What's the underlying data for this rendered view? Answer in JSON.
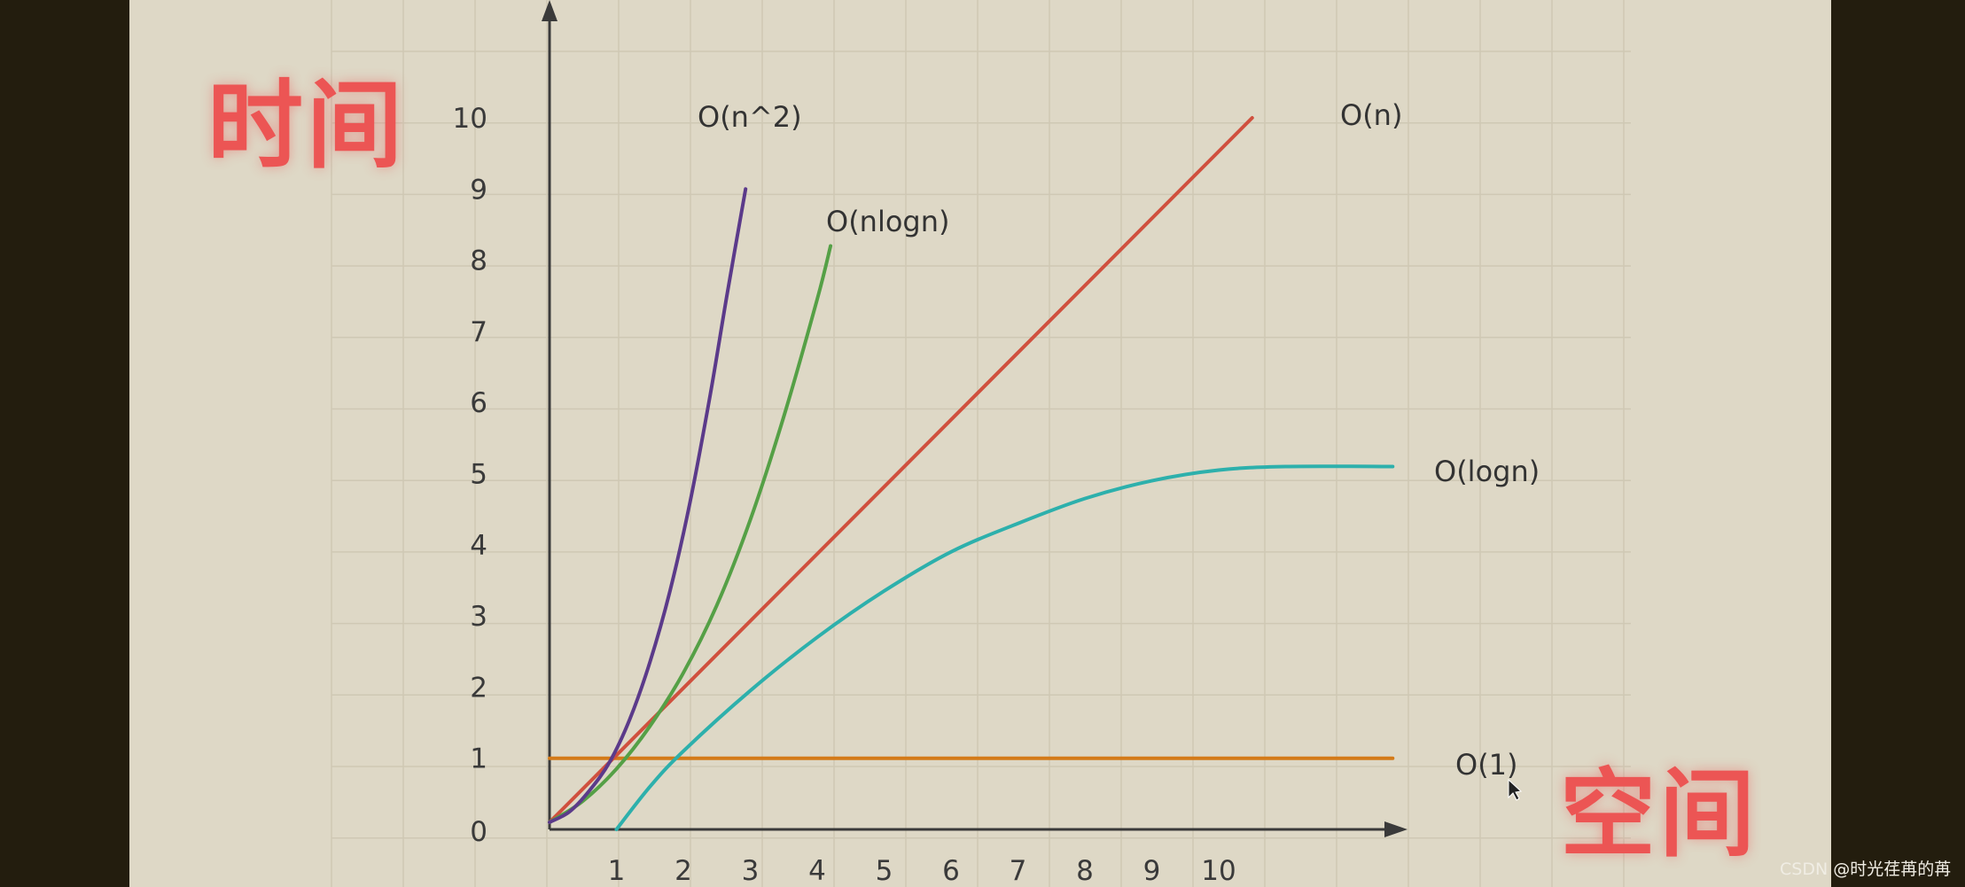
{
  "labels": {
    "time": "时间",
    "space": "空间"
  },
  "watermark": "CSDN @时光荏苒的苒",
  "colors": {
    "background": "#ded8c6",
    "frame": "#231d0e",
    "grid": "#cfc8b4",
    "axis": "#3a3a3a",
    "big_label": "#ec5554"
  },
  "chart_data": {
    "type": "line",
    "xlim": [
      0,
      12.6
    ],
    "ylim": [
      0,
      10.6
    ],
    "x_ticks": [
      1,
      2,
      3,
      4,
      5,
      6,
      7,
      8,
      9,
      10
    ],
    "y_ticks": [
      0,
      1,
      2,
      3,
      4,
      5,
      6,
      7,
      8,
      9,
      10
    ],
    "grid": true,
    "series": [
      {
        "name": "O(n^2)",
        "color": "#5b3a8a",
        "x": [
          0,
          0.3,
          0.6,
          0.9,
          1.2,
          1.5,
          1.8,
          2.1,
          2.4,
          2.65,
          2.93
        ],
        "y": [
          0.1,
          0.25,
          0.55,
          0.95,
          1.55,
          2.35,
          3.35,
          4.6,
          6.1,
          7.5,
          9.0
        ]
      },
      {
        "name": "O(nlogn)",
        "color": "#55a046",
        "x": [
          0,
          0.5,
          1.0,
          1.5,
          2.0,
          2.5,
          3.0,
          3.5,
          4.0,
          4.2
        ],
        "y": [
          0.1,
          0.4,
          0.85,
          1.45,
          2.2,
          3.15,
          4.35,
          5.8,
          7.45,
          8.2
        ]
      },
      {
        "name": "O(n)",
        "color": "#d0503e",
        "x": [
          0,
          10.5
        ],
        "y": [
          0.1,
          10.0
        ]
      },
      {
        "name": "O(logn)",
        "color": "#2db0ac",
        "x": [
          1.0,
          1.5,
          2.0,
          3.0,
          4.0,
          5.0,
          6.0,
          7.0,
          8.0,
          9.0,
          10.0,
          11.0,
          12.6
        ],
        "y": [
          0.0,
          0.6,
          1.1,
          1.95,
          2.7,
          3.35,
          3.9,
          4.3,
          4.65,
          4.9,
          5.05,
          5.1,
          5.1
        ]
      },
      {
        "name": "O(1)",
        "color": "#d47a18",
        "x": [
          0,
          12.6
        ],
        "y": [
          1.0,
          1.0
        ]
      }
    ]
  }
}
